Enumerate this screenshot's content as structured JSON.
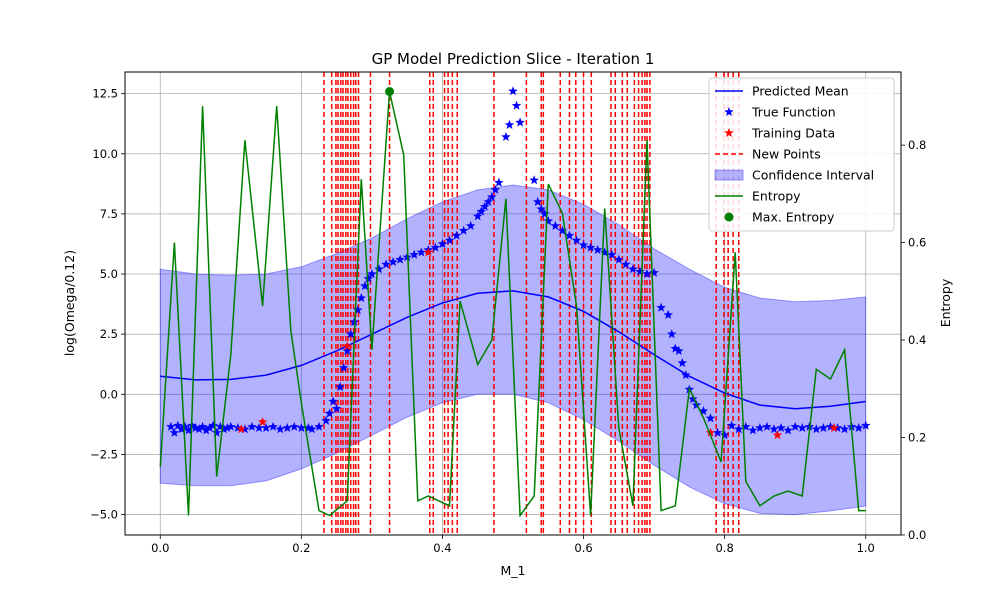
{
  "chart_data": {
    "type": "line",
    "title": "GP Model Prediction Slice - Iteration 1",
    "xlabel": "M_1",
    "ylabel": "log(Omega/0.12)",
    "y2label": "Entropy",
    "xlim": [
      -0.05,
      1.05
    ],
    "ylim": [
      -5.85,
      13.4
    ],
    "y2lim": [
      0.0,
      0.95
    ],
    "xticks": [
      0.0,
      0.2,
      0.4,
      0.6,
      0.8,
      1.0
    ],
    "xtick_labels": [
      "0.0",
      "0.2",
      "0.4",
      "0.6",
      "0.8",
      "1.0"
    ],
    "yticks": [
      -5.0,
      -2.5,
      0.0,
      2.5,
      5.0,
      7.5,
      10.0,
      12.5
    ],
    "ytick_labels": [
      "−5.0",
      "−2.5",
      "0.0",
      "2.5",
      "5.0",
      "7.5",
      "10.0",
      "12.5"
    ],
    "y2ticks": [
      0.0,
      0.2,
      0.4,
      0.6,
      0.8
    ],
    "y2tick_labels": [
      "0.0",
      "0.2",
      "0.4",
      "0.6",
      "0.8"
    ],
    "grid": true,
    "legend_position": "top-right",
    "legend": [
      {
        "label": "Predicted Mean",
        "kind": "line",
        "color": "#0000ff"
      },
      {
        "label": "True Function",
        "kind": "star",
        "color": "#0000ff"
      },
      {
        "label": "Training Data",
        "kind": "star",
        "color": "#ff0000"
      },
      {
        "label": "New Points",
        "kind": "dashed",
        "color": "#ff0000"
      },
      {
        "label": "Confidence Interval",
        "kind": "patch",
        "color": "#0000ff"
      },
      {
        "label": "Entropy",
        "kind": "line",
        "color": "#008000"
      },
      {
        "label": "Max. Entropy",
        "kind": "dot",
        "color": "#008000"
      }
    ],
    "series": [
      {
        "name": "Predicted Mean",
        "color": "#0000ff",
        "x": [
          0.0,
          0.05,
          0.1,
          0.15,
          0.2,
          0.25,
          0.3,
          0.35,
          0.4,
          0.45,
          0.5,
          0.55,
          0.6,
          0.65,
          0.7,
          0.75,
          0.8,
          0.85,
          0.9,
          0.95,
          1.0
        ],
        "y": [
          0.75,
          0.6,
          0.62,
          0.8,
          1.2,
          1.8,
          2.5,
          3.2,
          3.8,
          4.2,
          4.3,
          4.05,
          3.45,
          2.6,
          1.65,
          0.75,
          0.05,
          -0.45,
          -0.6,
          -0.5,
          -0.3
        ]
      },
      {
        "name": "Confidence Interval",
        "color": "#0000ff",
        "x": [
          0.0,
          0.05,
          0.1,
          0.15,
          0.2,
          0.25,
          0.3,
          0.35,
          0.4,
          0.45,
          0.5,
          0.55,
          0.6,
          0.65,
          0.7,
          0.75,
          0.8,
          0.85,
          0.9,
          0.95,
          1.0
        ],
        "upper": [
          5.2,
          5.0,
          4.95,
          5.0,
          5.3,
          5.85,
          6.5,
          7.3,
          8.0,
          8.5,
          8.7,
          8.5,
          7.9,
          7.05,
          6.05,
          5.2,
          4.45,
          4.0,
          3.85,
          3.9,
          4.05
        ],
        "lower": [
          -3.7,
          -3.8,
          -3.8,
          -3.6,
          -3.1,
          -2.45,
          -1.7,
          -0.95,
          -0.35,
          0.0,
          0.0,
          -0.35,
          -1.05,
          -1.95,
          -2.95,
          -3.85,
          -4.55,
          -4.95,
          -5.0,
          -4.85,
          -4.65
        ]
      },
      {
        "name": "True Function",
        "color": "#0000ff",
        "x": [
          0.015,
          0.02,
          0.025,
          0.03,
          0.035,
          0.04,
          0.045,
          0.05,
          0.055,
          0.06,
          0.065,
          0.07,
          0.075,
          0.08,
          0.085,
          0.09,
          0.095,
          0.1,
          0.11,
          0.12,
          0.13,
          0.14,
          0.15,
          0.16,
          0.17,
          0.18,
          0.19,
          0.2,
          0.21,
          0.215,
          0.225,
          0.235,
          0.24,
          0.245,
          0.25,
          0.255,
          0.26,
          0.265,
          0.27,
          0.275,
          0.28,
          0.285,
          0.29,
          0.295,
          0.3,
          0.31,
          0.32,
          0.33,
          0.34,
          0.35,
          0.36,
          0.37,
          0.38,
          0.39,
          0.4,
          0.41,
          0.42,
          0.43,
          0.44,
          0.45,
          0.455,
          0.46,
          0.465,
          0.47,
          0.475,
          0.48,
          0.49,
          0.495,
          0.5,
          0.505,
          0.51,
          0.53,
          0.535,
          0.54,
          0.545,
          0.55,
          0.56,
          0.57,
          0.58,
          0.59,
          0.6,
          0.61,
          0.62,
          0.63,
          0.64,
          0.65,
          0.66,
          0.67,
          0.68,
          0.69,
          0.7,
          0.71,
          0.72,
          0.725,
          0.73,
          0.735,
          0.74,
          0.745,
          0.75,
          0.755,
          0.76,
          0.77,
          0.78,
          0.79,
          0.8,
          0.81,
          0.82,
          0.83,
          0.84,
          0.85,
          0.86,
          0.87,
          0.88,
          0.89,
          0.9,
          0.91,
          0.92,
          0.93,
          0.94,
          0.95,
          0.96,
          0.97,
          0.98,
          0.99,
          1.0
        ],
        "y": [
          -1.35,
          -1.6,
          -1.3,
          -1.45,
          -1.35,
          -1.5,
          -1.3,
          -1.4,
          -1.45,
          -1.35,
          -1.5,
          -1.4,
          -1.3,
          -1.6,
          -1.35,
          -1.45,
          -1.4,
          -1.35,
          -1.4,
          -1.45,
          -1.35,
          -1.4,
          -1.4,
          -1.35,
          -1.45,
          -1.4,
          -1.35,
          -1.4,
          -1.4,
          -1.45,
          -1.35,
          -1.1,
          -0.8,
          -0.3,
          -0.6,
          0.3,
          1.1,
          1.8,
          2.5,
          3.0,
          3.5,
          4.0,
          4.5,
          4.8,
          5.0,
          5.2,
          5.4,
          5.5,
          5.6,
          5.7,
          5.8,
          5.9,
          6.0,
          6.1,
          6.25,
          6.4,
          6.6,
          6.8,
          7.0,
          7.4,
          7.6,
          7.8,
          8.0,
          8.2,
          8.5,
          8.8,
          10.7,
          11.2,
          12.6,
          12.0,
          11.3,
          8.9,
          8.0,
          7.7,
          7.5,
          7.2,
          7.0,
          6.8,
          6.6,
          6.4,
          6.2,
          6.1,
          6.0,
          5.9,
          5.8,
          5.6,
          5.4,
          5.2,
          5.1,
          5.0,
          5.05,
          3.6,
          3.3,
          2.5,
          1.9,
          1.8,
          1.3,
          0.8,
          0.2,
          -0.2,
          -0.45,
          -0.7,
          -1.0,
          -1.6,
          -1.7,
          -1.3,
          -1.45,
          -1.35,
          -1.5,
          -1.4,
          -1.35,
          -1.45,
          -1.4,
          -1.5,
          -1.35,
          -1.4,
          -1.35,
          -1.45,
          -1.4,
          -1.35,
          -1.4,
          -1.45,
          -1.35,
          -1.4,
          -1.3
        ]
      },
      {
        "name": "Training Data",
        "color": "#ff0000",
        "x": [
          0.115,
          0.145,
          0.265,
          0.38,
          0.78,
          0.875,
          0.955
        ],
        "y": [
          -1.45,
          -1.15,
          2.0,
          5.9,
          -1.6,
          -1.7,
          -1.4
        ]
      },
      {
        "name": "New Points",
        "color": "#ff0000",
        "x": [
          0.232,
          0.243,
          0.249,
          0.252,
          0.256,
          0.259,
          0.263,
          0.266,
          0.27,
          0.274,
          0.277,
          0.281,
          0.298,
          0.325,
          0.382,
          0.387,
          0.403,
          0.408,
          0.414,
          0.421,
          0.473,
          0.519,
          0.54,
          0.543,
          0.567,
          0.58,
          0.589,
          0.6,
          0.611,
          0.639,
          0.645,
          0.655,
          0.662,
          0.672,
          0.678,
          0.683,
          0.687,
          0.69,
          0.694,
          0.788,
          0.799,
          0.805,
          0.812,
          0.82
        ]
      },
      {
        "name": "Entropy",
        "color": "#008000",
        "axis": "right",
        "x": [
          0.0,
          0.02,
          0.04,
          0.06,
          0.08,
          0.1,
          0.12,
          0.145,
          0.165,
          0.185,
          0.2,
          0.225,
          0.24,
          0.265,
          0.285,
          0.3,
          0.325,
          0.345,
          0.365,
          0.38,
          0.395,
          0.41,
          0.425,
          0.45,
          0.47,
          0.49,
          0.51,
          0.53,
          0.55,
          0.57,
          0.59,
          0.61,
          0.63,
          0.65,
          0.67,
          0.69,
          0.71,
          0.73,
          0.75,
          0.77,
          0.795,
          0.815,
          0.83,
          0.85,
          0.87,
          0.89,
          0.91,
          0.93,
          0.95,
          0.97,
          0.99,
          1.0
        ],
        "y": [
          0.14,
          0.6,
          0.04,
          0.88,
          0.12,
          0.37,
          0.81,
          0.47,
          0.88,
          0.42,
          0.27,
          0.05,
          0.04,
          0.07,
          0.73,
          0.38,
          0.91,
          0.78,
          0.07,
          0.08,
          0.07,
          0.06,
          0.48,
          0.35,
          0.4,
          0.69,
          0.04,
          0.08,
          0.72,
          0.66,
          0.47,
          0.04,
          0.67,
          0.22,
          0.06,
          0.81,
          0.05,
          0.06,
          0.3,
          0.24,
          0.15,
          0.58,
          0.11,
          0.06,
          0.08,
          0.09,
          0.08,
          0.34,
          0.32,
          0.38,
          0.05,
          0.05
        ]
      },
      {
        "name": "Max. Entropy",
        "color": "#008000",
        "axis": "right",
        "x": [
          0.325
        ],
        "y": [
          0.91
        ]
      }
    ]
  }
}
